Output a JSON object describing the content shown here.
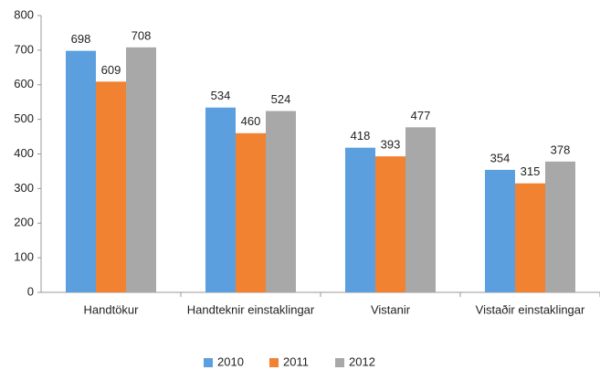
{
  "chart_data": {
    "type": "bar",
    "categories": [
      "Handtökur",
      "Handteknir einstaklingar",
      "Vistanir",
      "Vistaðir einstaklingar"
    ],
    "series": [
      {
        "name": "2010",
        "color": "#5b9fde",
        "values": [
          698,
          534,
          418,
          354
        ]
      },
      {
        "name": "2011",
        "color": "#f08232",
        "values": [
          609,
          460,
          393,
          315
        ]
      },
      {
        "name": "2012",
        "color": "#a8a8a8",
        "values": [
          708,
          524,
          477,
          378
        ]
      }
    ],
    "ylim": [
      0,
      800
    ],
    "yticks": [
      0,
      100,
      200,
      300,
      400,
      500,
      600,
      700,
      800
    ],
    "grid": false,
    "legend": "bottom"
  }
}
